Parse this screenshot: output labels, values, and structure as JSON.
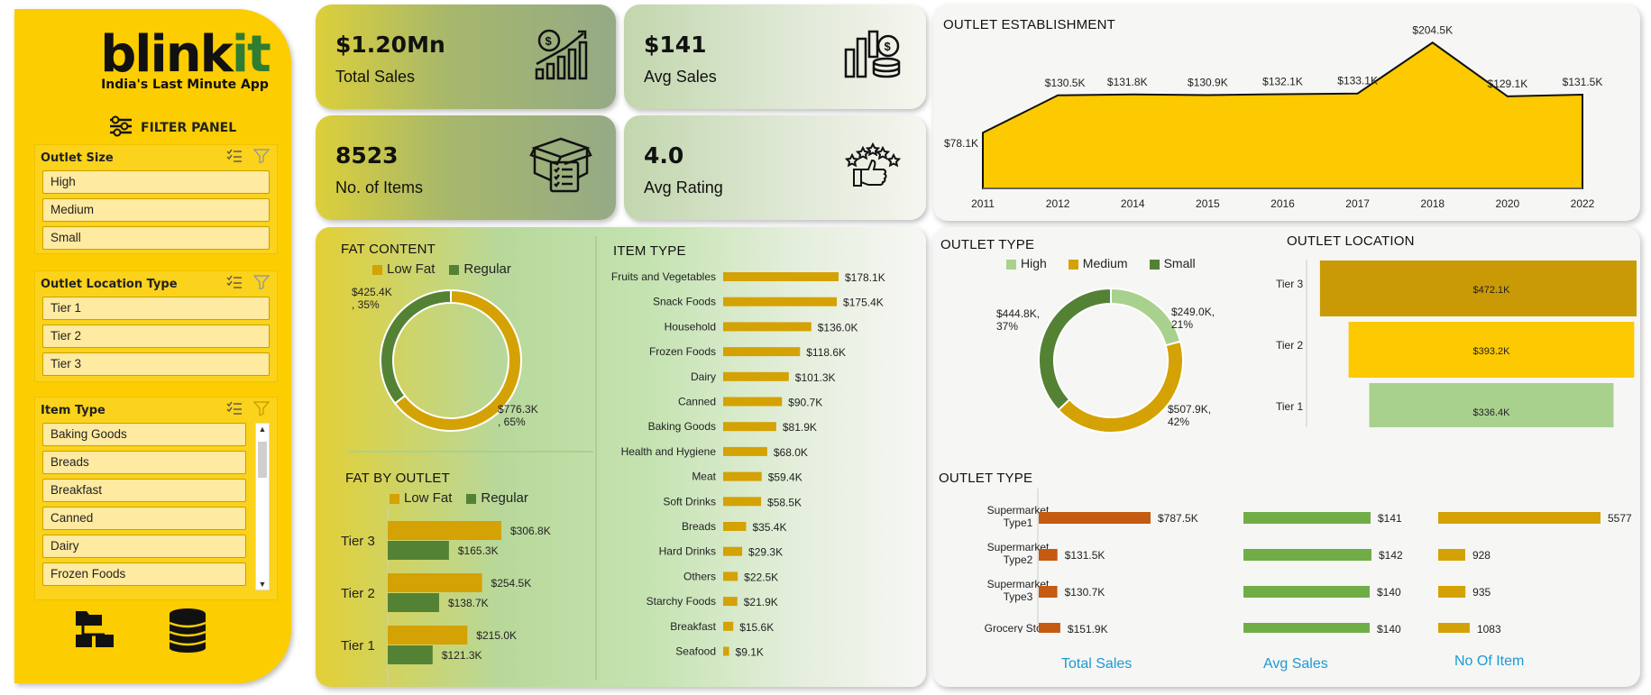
{
  "brand": {
    "name_main": "blink",
    "name_accent": "it",
    "tagline": "India's Last Minute App"
  },
  "filter_panel": {
    "title": "FILTER PANEL",
    "outlet_size": {
      "title": "Outlet Size",
      "items": [
        "High",
        "Medium",
        "Small"
      ]
    },
    "outlet_location_type": {
      "title": "Outlet Location Type",
      "items": [
        "Tier 1",
        "Tier 2",
        "Tier 3"
      ]
    },
    "item_type": {
      "title": "Item Type",
      "items": [
        "Baking Goods",
        "Breads",
        "Breakfast",
        "Canned",
        "Dairy",
        "Frozen Foods"
      ]
    }
  },
  "kpis": {
    "total_sales": {
      "value": "$1.20Mn",
      "label": "Total Sales"
    },
    "avg_sales": {
      "value": "$141",
      "label": "Avg Sales"
    },
    "no_of_items": {
      "value": "8523",
      "label": "No. of Items"
    },
    "avg_rating": {
      "value": "4.0",
      "label": "Avg Rating"
    }
  },
  "colors": {
    "gold": "#d4a204",
    "yellow": "#fdc900",
    "green": "#548235",
    "light_green": "#a9d18e",
    "orange": "#c55a11",
    "blue": "#1a9ad6"
  },
  "chart_data": [
    {
      "id": "outlet_establishment",
      "type": "area",
      "title": "OUTLET ESTABLISHMENT",
      "x": [
        "2011",
        "2012",
        "2014",
        "2015",
        "2016",
        "2017",
        "2018",
        "2020",
        "2022"
      ],
      "values": [
        78.1,
        130.5,
        131.8,
        130.9,
        132.1,
        133.1,
        204.5,
        129.1,
        131.5
      ],
      "labels": [
        "$78.1K",
        "$130.5K",
        "$131.8K",
        "$130.9K",
        "$132.1K",
        "$133.1K",
        "$204.5K",
        "$129.1K",
        "$131.5K"
      ],
      "ylim": [
        0,
        220
      ]
    },
    {
      "id": "fat_content",
      "type": "pie",
      "title": "FAT CONTENT",
      "categories": [
        "Low Fat",
        "Regular"
      ],
      "values": [
        776.3,
        425.4
      ],
      "labels": [
        "$776.3K\n, 65%",
        "$425.4K\n, 35%"
      ]
    },
    {
      "id": "fat_by_outlet",
      "type": "bar",
      "title": "FAT BY OUTLET",
      "categories": [
        "Tier 3",
        "Tier 2",
        "Tier 1"
      ],
      "series": [
        {
          "name": "Low Fat",
          "values": [
            306.8,
            254.5,
            215.0
          ],
          "labels": [
            "$306.8K",
            "$254.5K",
            "$215.0K"
          ]
        },
        {
          "name": "Regular",
          "values": [
            165.3,
            138.7,
            121.3
          ],
          "labels": [
            "$165.3K",
            "$138.7K",
            "$121.3K"
          ]
        }
      ]
    },
    {
      "id": "item_type",
      "type": "bar",
      "title": "ITEM TYPE",
      "categories": [
        "Fruits and Vegetables",
        "Snack Foods",
        "Household",
        "Frozen Foods",
        "Dairy",
        "Canned",
        "Baking Goods",
        "Health and Hygiene",
        "Meat",
        "Soft Drinks",
        "Breads",
        "Hard Drinks",
        "Others",
        "Starchy Foods",
        "Breakfast",
        "Seafood"
      ],
      "values": [
        178.1,
        175.4,
        136.0,
        118.6,
        101.3,
        90.7,
        81.9,
        68.0,
        59.4,
        58.5,
        35.4,
        29.3,
        22.5,
        21.9,
        15.6,
        9.1
      ],
      "labels": [
        "$178.1K",
        "$175.4K",
        "$136.0K",
        "$118.6K",
        "$101.3K",
        "$90.7K",
        "$81.9K",
        "$68.0K",
        "$59.4K",
        "$58.5K",
        "$35.4K",
        "$29.3K",
        "$22.5K",
        "$21.9K",
        "$15.6K",
        "$9.1K"
      ]
    },
    {
      "id": "outlet_size",
      "type": "pie",
      "title": "OUTLET TYPE",
      "categories": [
        "High",
        "Medium",
        "Small"
      ],
      "values": [
        249.0,
        507.9,
        444.8
      ],
      "labels": [
        "$249.0K,\n21%",
        "$507.9K,\n42%",
        "$444.8K,\n37%"
      ]
    },
    {
      "id": "outlet_location",
      "type": "bar",
      "title": "OUTLET LOCATION",
      "categories": [
        "Tier 3",
        "Tier 2",
        "Tier 1"
      ],
      "values": [
        472.1,
        393.2,
        336.4
      ],
      "labels": [
        "$472.1K",
        "$393.2K",
        "$336.4K"
      ]
    },
    {
      "id": "outlet_type_metrics",
      "type": "bar",
      "title": "OUTLET TYPE",
      "categories": [
        "Supermarket\nType1",
        "Supermarket\nType2",
        "Supermarket\nType3",
        "Grocery Store"
      ],
      "series": [
        {
          "name": "Total Sales",
          "values": [
            787.5,
            131.5,
            130.7,
            151.9
          ],
          "labels": [
            "$787.5K",
            "$131.5K",
            "$130.7K",
            "$151.9K"
          ]
        },
        {
          "name": "Avg Sales",
          "values": [
            141,
            142,
            140,
            140
          ],
          "labels": [
            "$141",
            "$142",
            "$140",
            "$140"
          ]
        },
        {
          "name": "No Of Item",
          "values": [
            5577,
            928,
            935,
            1083
          ],
          "labels": [
            "5577",
            "928",
            "935",
            "1083"
          ]
        }
      ]
    }
  ]
}
